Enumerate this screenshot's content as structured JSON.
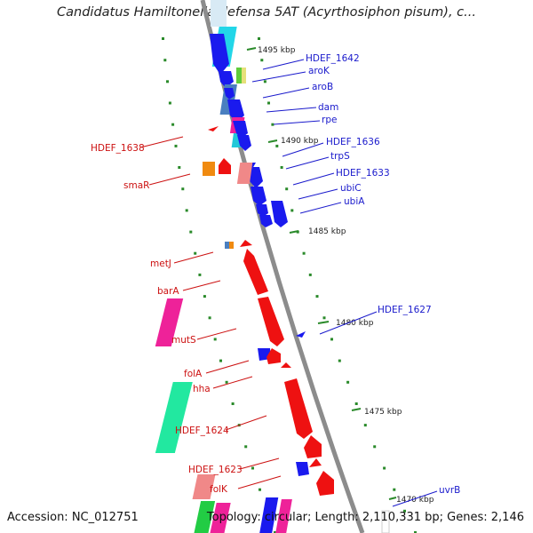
{
  "title": "Candidatus Hamiltonella defensa 5AT (Acyrthosiphon pisum), c...",
  "footer": {
    "accession": "Accession: NC_012751",
    "summary": "Topology: circular; Length: 2,110,331 bp; Genes: 2,146"
  },
  "colors": {
    "forward": "#1a1aee",
    "reverse": "#ee1111",
    "backbone": "#888888",
    "tick": "#2a8a2a"
  },
  "scale_ticks": [
    "1495 kbp",
    "1490 kbp",
    "1485 kbp",
    "1480 kbp",
    "1475 kbp",
    "1470 kbp"
  ],
  "forward_labels": [
    "HDEF_1642",
    "aroK",
    "aroB",
    "dam",
    "rpe",
    "HDEF_1636",
    "trpS",
    "HDEF_1633",
    "ubiC",
    "ubiA",
    "HDEF_1627",
    "uvrB"
  ],
  "reverse_labels": [
    "HDEF_1638",
    "smaR",
    "metJ",
    "barA",
    "mutS",
    "folA",
    "hha",
    "HDEF_1624",
    "HDEF_1623",
    "folK"
  ]
}
